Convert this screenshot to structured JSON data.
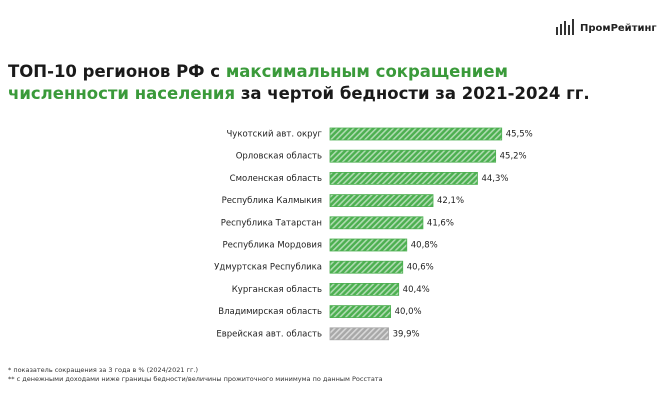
{
  "logo": "ПромРейтинг",
  "chart_data": {
    "type": "bar",
    "orientation": "horizontal",
    "title_lines": [
      [
        {
          "text": "ТОП-10 регионов РФ с ",
          "highlight": false
        },
        {
          "text": "максимальным сокращением",
          "highlight": true
        }
      ],
      [
        {
          "text": "численности населения",
          "highlight": true
        },
        {
          "text": " за чертой бедности за 2021-2024 гг.",
          "highlight": false
        }
      ]
    ],
    "highlight_color": "#3a9a3a",
    "categories": [
      "Чукотский авт. округ",
      "Орловская область",
      "Смоленская область",
      "Республика Калмыкия",
      "Республика Татарстан",
      "Республика Мордовия",
      "Удмуртская Республика",
      "Курганская область",
      "Владимирская область",
      "Еврейская авт. область"
    ],
    "values": [
      45.5,
      45.2,
      44.3,
      42.1,
      41.6,
      40.8,
      40.6,
      40.4,
      40.0,
      39.9
    ],
    "value_labels": [
      "45,5%",
      "45,2%",
      "44,3%",
      "42,1%",
      "41,6%",
      "40,8%",
      "40,6%",
      "40,4%",
      "40,0%",
      "39,9%"
    ],
    "colors": [
      "#4caf50",
      "#4caf50",
      "#4caf50",
      "#4caf50",
      "#4caf50",
      "#4caf50",
      "#4caf50",
      "#4caf50",
      "#4caf50",
      "#a8a8a8"
    ],
    "hatched": true,
    "xlim": [
      37,
      47
    ],
    "footnotes": [
      "* показатель сокращения за 3 года в %  (2024/2021 гг.)",
      "** с денежными доходами ниже границы бедности/величины прожиточного минимума по данным Росстата"
    ]
  }
}
